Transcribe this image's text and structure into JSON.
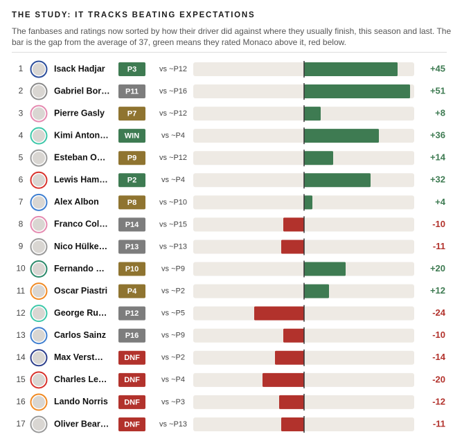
{
  "title": "THE STUDY: IT TRACKS BEATING EXPECTATIONS",
  "subtitle": "The fanbases and ratings now sorted by how their driver did against where they usually finish, this season and last. The bar is the gap from the average of 37, green means they rated Monaco above it, red below.",
  "positive_color": "#3e7b52",
  "negative_color": "#b2322c",
  "track_color": "#eeeae4",
  "rows": [
    {
      "rank": 1,
      "name": "Isack Hadjar",
      "ring": "#2d4f9c",
      "badge": "P3",
      "badge_color": "#3e7b52",
      "vs": "vs ~P12",
      "value": 45,
      "value_label": "+45"
    },
    {
      "rank": 2,
      "name": "Gabriel Bor…",
      "ring": "#8a8a8a",
      "badge": "P11",
      "badge_color": "#7d7d7d",
      "vs": "vs ~P16",
      "value": 51,
      "value_label": "+51"
    },
    {
      "rank": 3,
      "name": "Pierre Gasly",
      "ring": "#e58ab0",
      "badge": "P7",
      "badge_color": "#8f7430",
      "vs": "vs ~P12",
      "value": 8,
      "value_label": "+8"
    },
    {
      "rank": 4,
      "name": "Kimi Anton…",
      "ring": "#3cc7a8",
      "badge": "WIN",
      "badge_color": "#3e7b52",
      "vs": "vs ~P4",
      "value": 36,
      "value_label": "+36"
    },
    {
      "rank": 5,
      "name": "Esteban O…",
      "ring": "#9a9a9a",
      "badge": "P9",
      "badge_color": "#8f7430",
      "vs": "vs ~P12",
      "value": 14,
      "value_label": "+14"
    },
    {
      "rank": 6,
      "name": "Lewis Ham…",
      "ring": "#d8322c",
      "badge": "P2",
      "badge_color": "#3e7b52",
      "vs": "vs ~P4",
      "value": 32,
      "value_label": "+32"
    },
    {
      "rank": 7,
      "name": "Alex Albon",
      "ring": "#3f7fd0",
      "badge": "P8",
      "badge_color": "#8f7430",
      "vs": "vs ~P10",
      "value": 4,
      "value_label": "+4"
    },
    {
      "rank": 8,
      "name": "Franco Col…",
      "ring": "#e58ab0",
      "badge": "P14",
      "badge_color": "#7d7d7d",
      "vs": "vs ~P15",
      "value": -10,
      "value_label": "-10"
    },
    {
      "rank": 9,
      "name": "Nico Hülke…",
      "ring": "#9a9a9a",
      "badge": "P13",
      "badge_color": "#7d7d7d",
      "vs": "vs ~P13",
      "value": -11,
      "value_label": "-11"
    },
    {
      "rank": 10,
      "name": "Fernando …",
      "ring": "#2c8a6a",
      "badge": "P10",
      "badge_color": "#8f7430",
      "vs": "vs ~P9",
      "value": 20,
      "value_label": "+20"
    },
    {
      "rank": 11,
      "name": "Oscar Piastri",
      "ring": "#f08a24",
      "badge": "P4",
      "badge_color": "#8f7430",
      "vs": "vs ~P2",
      "value": 12,
      "value_label": "+12"
    },
    {
      "rank": 12,
      "name": "George Ru…",
      "ring": "#3cc7a8",
      "badge": "P12",
      "badge_color": "#7d7d7d",
      "vs": "vs ~P5",
      "value": -24,
      "value_label": "-24"
    },
    {
      "rank": 13,
      "name": "Carlos Sainz",
      "ring": "#3f7fd0",
      "badge": "P16",
      "badge_color": "#7d7d7d",
      "vs": "vs ~P9",
      "value": -10,
      "value_label": "-10"
    },
    {
      "rank": 14,
      "name": "Max Verst…",
      "ring": "#2d3f8c",
      "badge": "DNF",
      "badge_color": "#b2322c",
      "vs": "vs ~P2",
      "value": -14,
      "value_label": "-14"
    },
    {
      "rank": 15,
      "name": "Charles Le…",
      "ring": "#d8322c",
      "badge": "DNF",
      "badge_color": "#b2322c",
      "vs": "vs ~P4",
      "value": -20,
      "value_label": "-20"
    },
    {
      "rank": 16,
      "name": "Lando Norris",
      "ring": "#f08a24",
      "badge": "DNF",
      "badge_color": "#b2322c",
      "vs": "vs ~P3",
      "value": -12,
      "value_label": "-12"
    },
    {
      "rank": 17,
      "name": "Oliver Bear…",
      "ring": "#9a9a9a",
      "badge": "DNF",
      "badge_color": "#b2322c",
      "vs": "vs ~P13",
      "value": -11,
      "value_label": "-11"
    }
  ]
}
